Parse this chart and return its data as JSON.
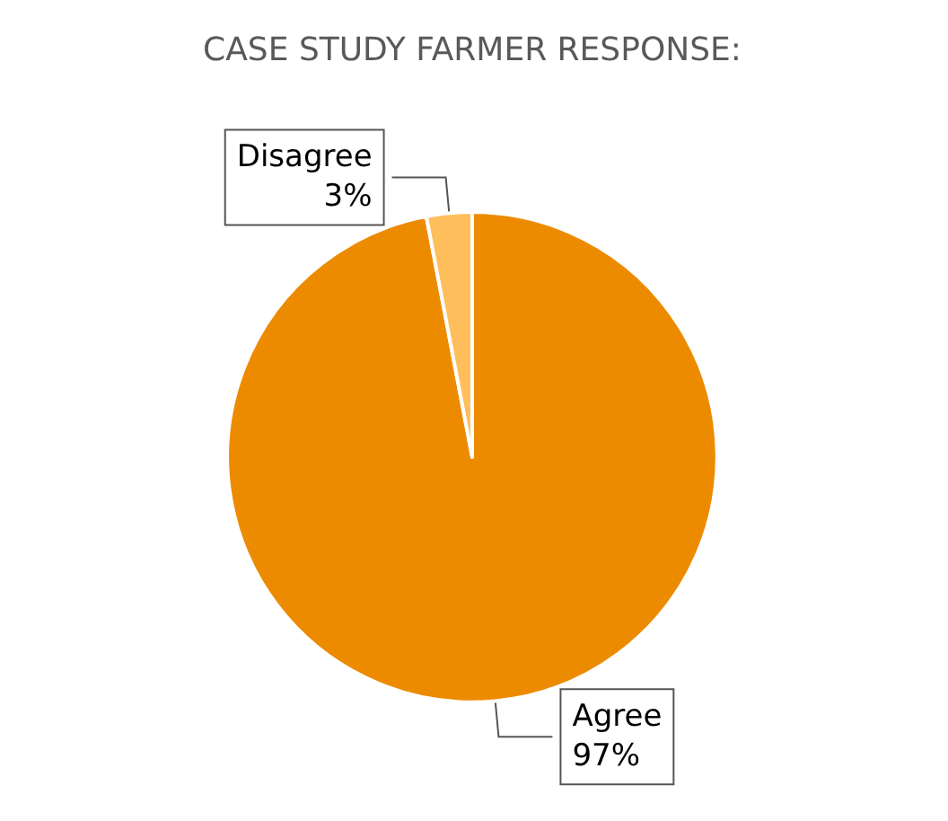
{
  "chart_data": {
    "type": "pie",
    "title": "CASE STUDY FARMER RESPONSE:",
    "categories": [
      "Agree",
      "Disagree"
    ],
    "values": [
      97,
      3
    ],
    "colors": [
      "#ed8b00",
      "#ffbe5c"
    ],
    "value_labels": [
      "97%",
      "3%"
    ],
    "legend": false
  }
}
